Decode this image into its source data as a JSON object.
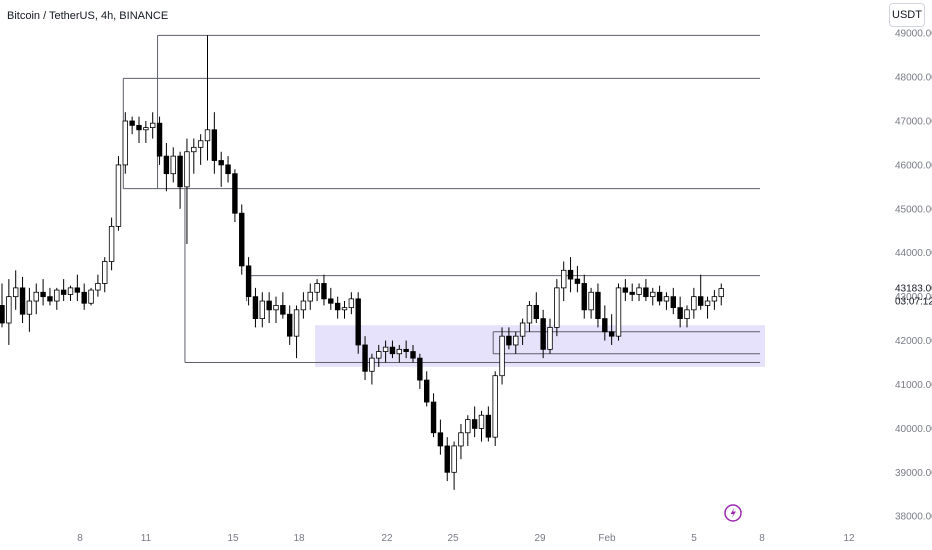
{
  "header": {
    "title": "Bitcoin / TetherUS, 4h, BINANCE",
    "currency_button": "USDT"
  },
  "price_scale": {
    "current_price": "43183.00",
    "countdown": "03:07:12"
  },
  "colors": {
    "up": "#ffffff",
    "down": "#000000",
    "wick": "#000000",
    "zone": "#e6e2fb",
    "line": "#5d606b"
  },
  "icons": {
    "replay": "lightning-icon"
  },
  "chart_data": {
    "type": "candlestick",
    "title": "Bitcoin / TetherUS, 4h, BINANCE",
    "ylim": [
      37800,
      49300
    ],
    "y_ticks": [
      38000,
      39000,
      40000,
      41000,
      42000,
      43000,
      44000,
      45000,
      46000,
      47000,
      48000,
      49000
    ],
    "y_tick_labels": [
      "38000.00",
      "39000.00",
      "40000.00",
      "41000.00",
      "42000.00",
      "43000.00",
      "44000.00",
      "45000.00",
      "46000.00",
      "47000.00",
      "48000.00",
      "49000.00"
    ],
    "x_ticks": [
      "8",
      "11",
      "15",
      "18",
      "22",
      "25",
      "29",
      "Feb",
      "5",
      "8",
      "12"
    ],
    "grid": false,
    "horizontal_lines": [
      {
        "price": 48950,
        "start": "Jan 11"
      },
      {
        "price": 47970,
        "start": "Jan 10"
      },
      {
        "price": 45460,
        "start": "Jan 10"
      },
      {
        "price": 43480,
        "start": "Jan 16"
      },
      {
        "price": 42200,
        "start": "Jan 27"
      },
      {
        "price": 41700,
        "start": "Jan 27"
      },
      {
        "price": 41500,
        "start": "Jan 13"
      }
    ],
    "zone": {
      "from": 41400,
      "to": 42350,
      "start": "Jan 18"
    },
    "candles": [
      [
        42800,
        43300,
        42300,
        42400
      ],
      [
        42400,
        43400,
        41900,
        43000
      ],
      [
        43000,
        43600,
        42700,
        43200
      ],
      [
        43200,
        43450,
        42400,
        42600
      ],
      [
        42600,
        43200,
        42200,
        42900
      ],
      [
        42900,
        43300,
        42600,
        43100
      ],
      [
        43100,
        43400,
        42800,
        43000
      ],
      [
        43000,
        43200,
        42800,
        42900
      ],
      [
        42900,
        43200,
        42700,
        43150
      ],
      [
        43150,
        43400,
        42900,
        43050
      ],
      [
        43050,
        43250,
        42900,
        43200
      ],
      [
        43200,
        43500,
        42900,
        43100
      ],
      [
        43100,
        43300,
        42700,
        42850
      ],
      [
        42850,
        43200,
        42800,
        43150
      ],
      [
        43150,
        43500,
        43000,
        43300
      ],
      [
        43300,
        43900,
        43100,
        43800
      ],
      [
        43800,
        44800,
        43600,
        44600
      ],
      [
        44600,
        46200,
        44500,
        46000
      ],
      [
        46000,
        47200,
        45800,
        47000
      ],
      [
        47000,
        47100,
        46700,
        46900
      ],
      [
        46900,
        47100,
        46500,
        46800
      ],
      [
        46800,
        47000,
        46500,
        46850
      ],
      [
        46850,
        47200,
        46600,
        46950
      ],
      [
        46950,
        47100,
        46000,
        46200
      ],
      [
        46200,
        46500,
        45400,
        45800
      ],
      [
        45800,
        46400,
        45600,
        46200
      ],
      [
        46200,
        46300,
        45000,
        45500
      ],
      [
        45500,
        46600,
        44200,
        46300
      ],
      [
        46300,
        46600,
        45800,
        46400
      ],
      [
        46400,
        46700,
        46000,
        46550
      ],
      [
        46550,
        48950,
        46100,
        46800
      ],
      [
        46800,
        47200,
        45800,
        46100
      ],
      [
        46100,
        46300,
        45500,
        46000
      ],
      [
        46000,
        46200,
        45600,
        45800
      ],
      [
        45800,
        45900,
        44700,
        44900
      ],
      [
        44900,
        45100,
        43500,
        43700
      ],
      [
        43700,
        43900,
        42800,
        43000
      ],
      [
        43000,
        43200,
        42300,
        42500
      ],
      [
        42500,
        43100,
        42300,
        42900
      ],
      [
        42900,
        43100,
        42400,
        42700
      ],
      [
        42700,
        43000,
        42400,
        42800
      ],
      [
        42800,
        43100,
        42500,
        42600
      ],
      [
        42600,
        42800,
        41900,
        42100
      ],
      [
        42100,
        42800,
        41600,
        42700
      ],
      [
        42700,
        43100,
        42500,
        42900
      ],
      [
        42900,
        43300,
        42700,
        43100
      ],
      [
        43100,
        43400,
        42900,
        43300
      ],
      [
        43300,
        43500,
        42800,
        42950
      ],
      [
        42950,
        43200,
        42700,
        42850
      ],
      [
        42850,
        43000,
        42500,
        42700
      ],
      [
        42700,
        42900,
        42500,
        42750
      ],
      [
        42750,
        43100,
        42600,
        42950
      ],
      [
        42950,
        43100,
        41700,
        41900
      ],
      [
        41900,
        42100,
        41100,
        41300
      ],
      [
        41300,
        41700,
        41000,
        41600
      ],
      [
        41600,
        41900,
        41400,
        41750
      ],
      [
        41750,
        42000,
        41500,
        41850
      ],
      [
        41850,
        42000,
        41600,
        41700
      ],
      [
        41700,
        41900,
        41500,
        41800
      ],
      [
        41800,
        42000,
        41600,
        41750
      ],
      [
        41750,
        41900,
        41500,
        41600
      ],
      [
        41600,
        41700,
        40900,
        41100
      ],
      [
        41100,
        41300,
        40500,
        40600
      ],
      [
        40600,
        40800,
        39800,
        39900
      ],
      [
        39900,
        40200,
        39400,
        39600
      ],
      [
        39600,
        39800,
        38800,
        39000
      ],
      [
        39000,
        39700,
        38600,
        39600
      ],
      [
        39600,
        40100,
        39300,
        39900
      ],
      [
        39900,
        40300,
        39600,
        40200
      ],
      [
        40200,
        40500,
        39800,
        40000
      ],
      [
        40000,
        40400,
        39700,
        40300
      ],
      [
        40300,
        40500,
        39700,
        39800
      ],
      [
        39800,
        41300,
        39600,
        41200
      ],
      [
        41200,
        42300,
        41000,
        42100
      ],
      [
        42100,
        42300,
        41800,
        41900
      ],
      [
        41900,
        42200,
        41700,
        42100
      ],
      [
        42100,
        42500,
        41900,
        42400
      ],
      [
        42400,
        42900,
        42200,
        42800
      ],
      [
        42800,
        43100,
        42400,
        42500
      ],
      [
        42500,
        42700,
        41600,
        41800
      ],
      [
        41800,
        42500,
        41700,
        42300
      ],
      [
        42300,
        43400,
        42100,
        43200
      ],
      [
        43200,
        43800,
        42900,
        43600
      ],
      [
        43600,
        43900,
        43100,
        43400
      ],
      [
        43400,
        43700,
        43100,
        43300
      ],
      [
        43300,
        43500,
        42500,
        42700
      ],
      [
        42700,
        43200,
        42500,
        43100
      ],
      [
        43100,
        43300,
        42300,
        42500
      ],
      [
        42500,
        42800,
        42000,
        42200
      ],
      [
        42200,
        42600,
        41900,
        42100
      ],
      [
        42100,
        43300,
        42000,
        43200
      ],
      [
        43200,
        43400,
        42900,
        43100
      ],
      [
        43100,
        43300,
        42900,
        43050
      ],
      [
        43050,
        43300,
        42900,
        43200
      ],
      [
        43200,
        43400,
        42900,
        43000
      ],
      [
        43000,
        43200,
        42800,
        43100
      ],
      [
        43100,
        43250,
        42800,
        42900
      ],
      [
        42900,
        43100,
        42700,
        43000
      ],
      [
        43000,
        43200,
        42600,
        42750
      ],
      [
        42750,
        43000,
        42300,
        42500
      ],
      [
        42500,
        42800,
        42300,
        42700
      ],
      [
        42700,
        43200,
        42500,
        43000
      ],
      [
        43000,
        43500,
        42700,
        42800
      ],
      [
        42800,
        43000,
        42500,
        42900
      ],
      [
        42900,
        43150,
        42700,
        43000
      ],
      [
        43000,
        43300,
        42800,
        43183
      ]
    ]
  }
}
